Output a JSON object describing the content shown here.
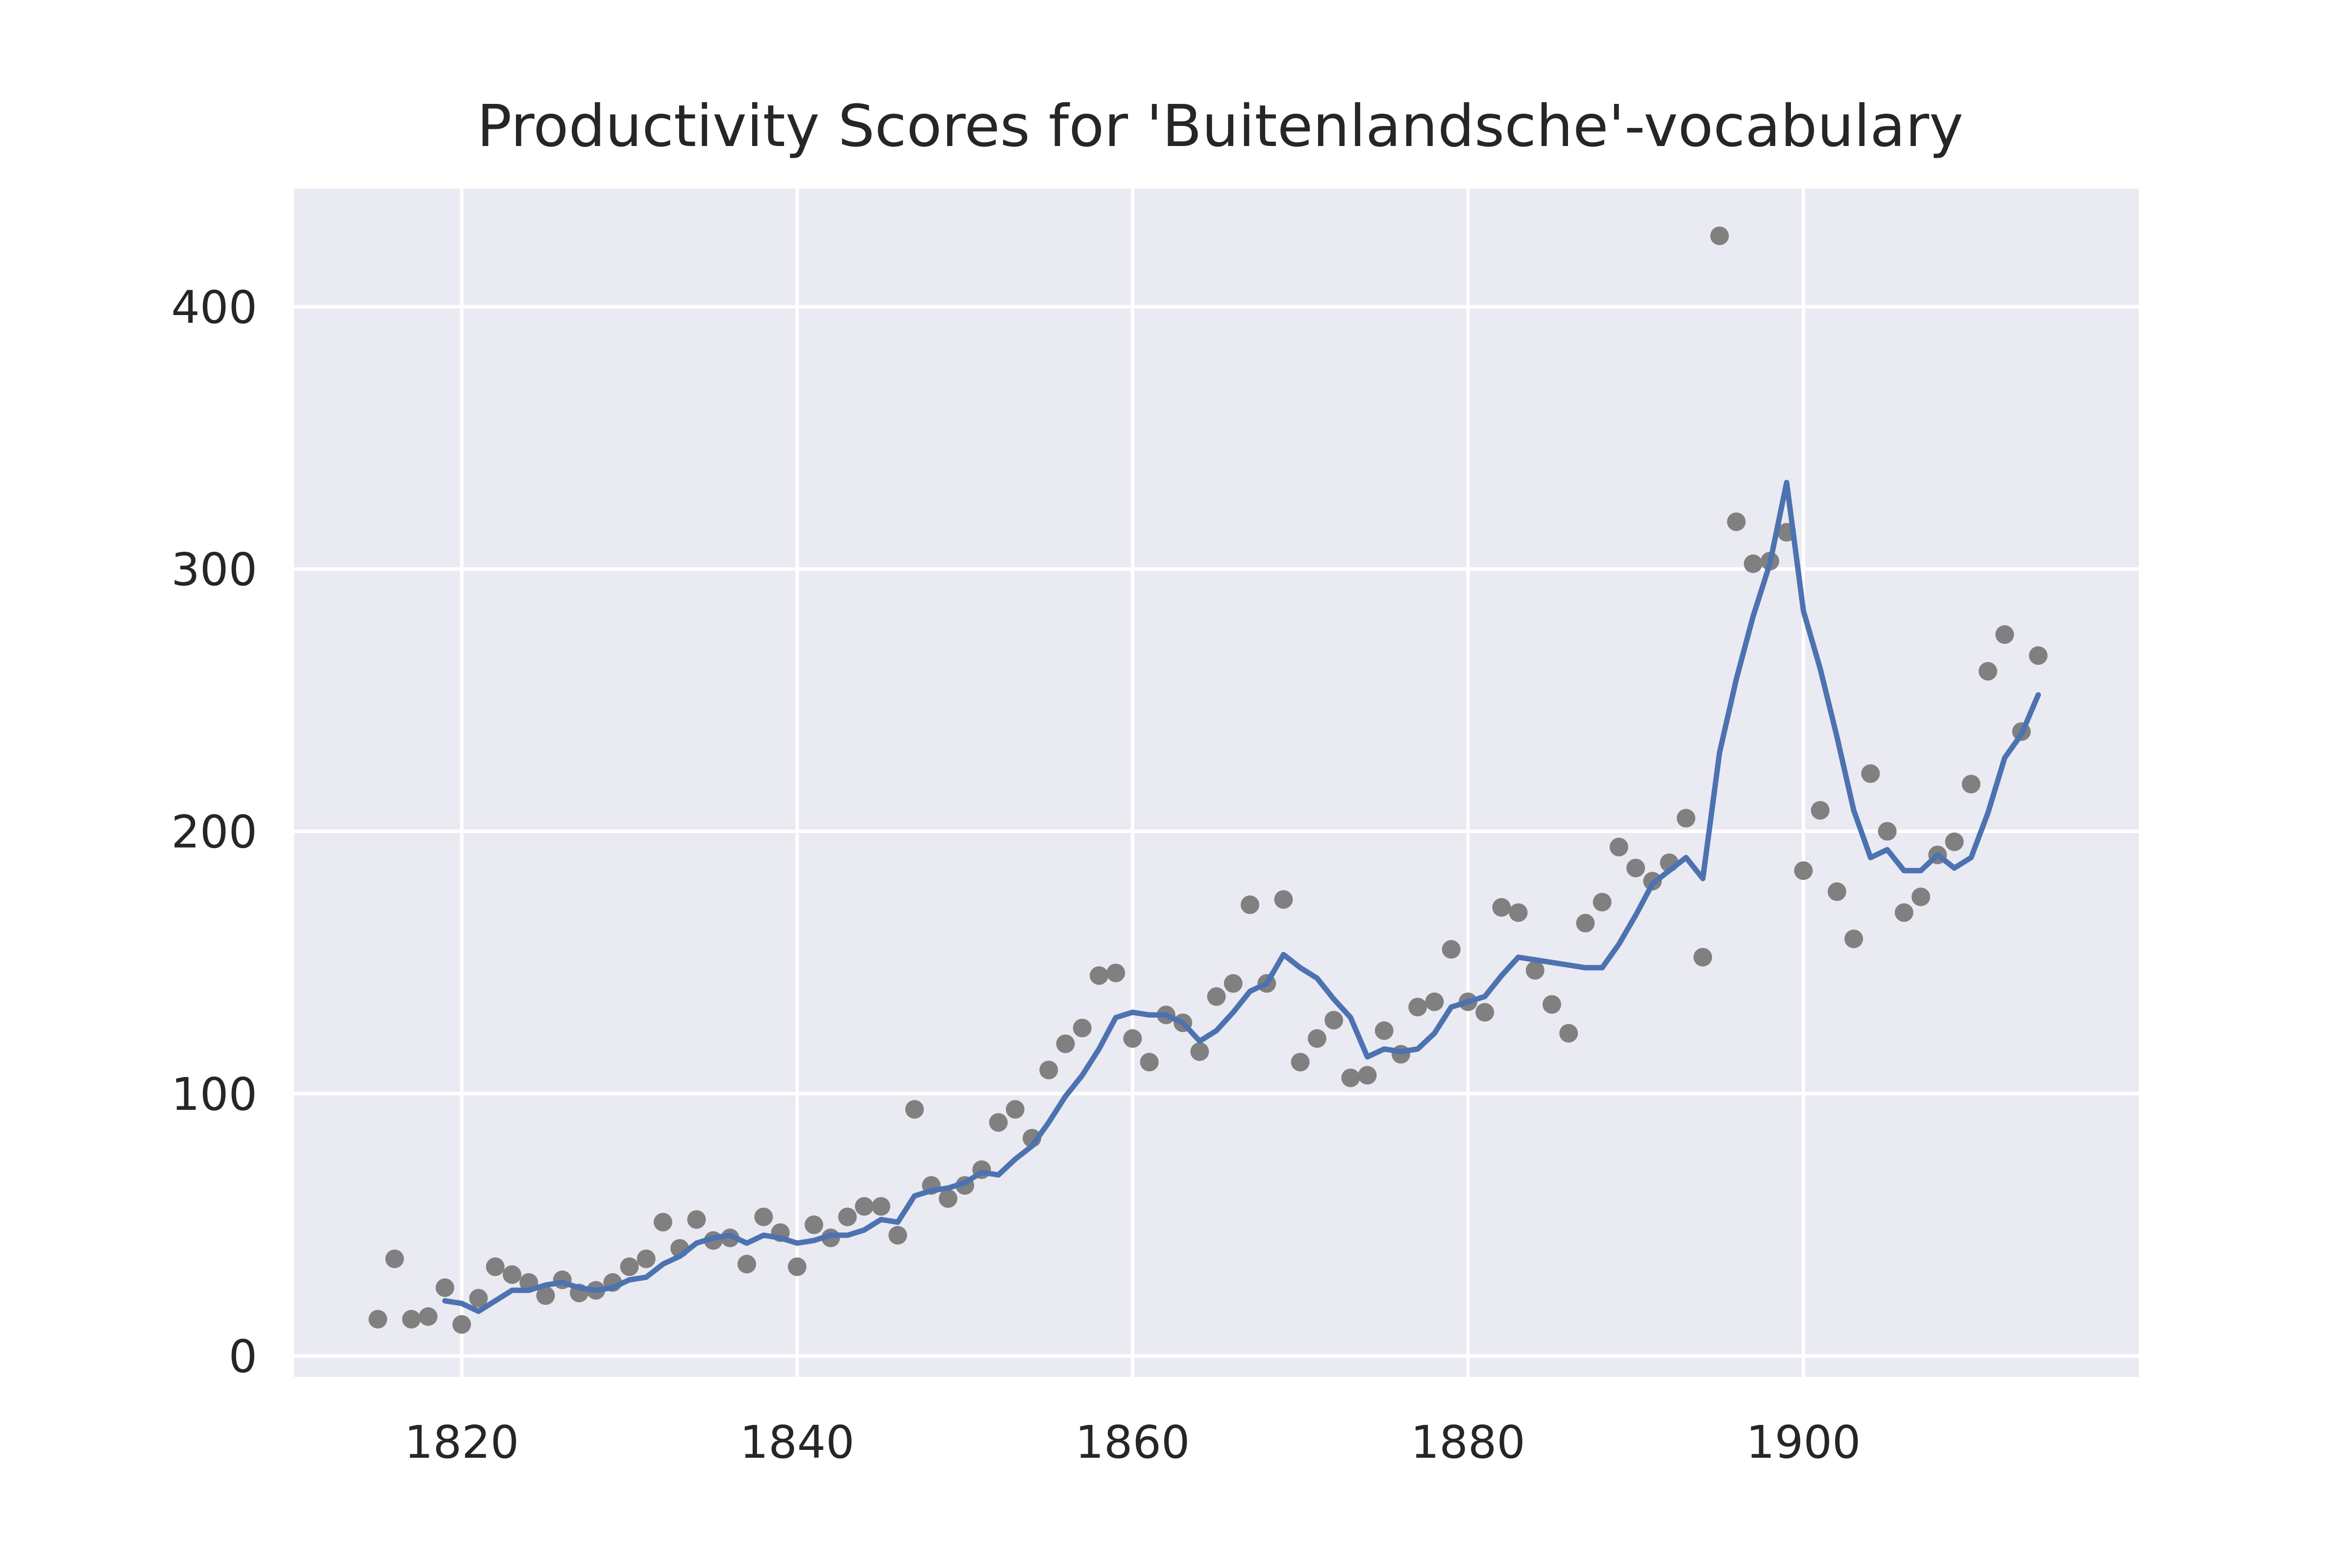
{
  "chart_data": {
    "type": "scatter",
    "title": "Productivity Scores for 'Buitenlandsche'-vocabulary",
    "xlabel": "",
    "ylabel": "",
    "xlim": [
      1810,
      1920
    ],
    "ylim": [
      -8,
      445
    ],
    "x_ticks": [
      1820,
      1840,
      1860,
      1880,
      1900
    ],
    "y_ticks": [
      0,
      100,
      200,
      300,
      400
    ],
    "grid": true,
    "legend": "none",
    "colors": {
      "plot_background": "#eaeaf2",
      "grid": "#ffffff",
      "points": "#808080",
      "line": "#4c72b0",
      "text": "#262626"
    },
    "series": [
      {
        "kind": "scatter",
        "x": [
          1815,
          1816,
          1817,
          1818,
          1819,
          1820,
          1821,
          1822,
          1823,
          1824,
          1825,
          1826,
          1827,
          1828,
          1829,
          1830,
          1831,
          1832,
          1833,
          1834,
          1835,
          1836,
          1837,
          1838,
          1839,
          1840,
          1841,
          1842,
          1843,
          1844,
          1845,
          1846,
          1847,
          1848,
          1849,
          1850,
          1851,
          1852,
          1853,
          1854,
          1855,
          1856,
          1857,
          1858,
          1859,
          1860,
          1861,
          1862,
          1863,
          1864,
          1865,
          1866,
          1867,
          1868,
          1869,
          1870,
          1871,
          1872,
          1873,
          1874,
          1875,
          1876,
          1877,
          1878,
          1879,
          1880,
          1881,
          1882,
          1883,
          1884,
          1885,
          1886,
          1887,
          1888,
          1889,
          1890,
          1891,
          1892,
          1893,
          1894,
          1895,
          1896,
          1897,
          1898,
          1899,
          1900,
          1901,
          1902,
          1903,
          1904,
          1905,
          1906,
          1907,
          1908,
          1909,
          1910,
          1911,
          1912,
          1913,
          1914
        ],
        "y": [
          14,
          37,
          14,
          15,
          26,
          12,
          22,
          34,
          31,
          28,
          23,
          29,
          24,
          25,
          28,
          34,
          37,
          51,
          41,
          52,
          44,
          45,
          35,
          53,
          47,
          34,
          50,
          45,
          53,
          57,
          57,
          46,
          94,
          65,
          60,
          65,
          71,
          89,
          94,
          83,
          109,
          119,
          125,
          145,
          146,
          121,
          112,
          130,
          127,
          116,
          137,
          142,
          172,
          142,
          174,
          112,
          121,
          128,
          106,
          107,
          124,
          115,
          133,
          135,
          155,
          135,
          131,
          171,
          169,
          147,
          134,
          123,
          165,
          173,
          194,
          186,
          181,
          188,
          205,
          152,
          427,
          318,
          302,
          303,
          314,
          185,
          208,
          177,
          159,
          222,
          200,
          169,
          175,
          191,
          196,
          218,
          261,
          275,
          238,
          267
        ]
      },
      {
        "kind": "line",
        "x": [
          1819,
          1820,
          1821,
          1822,
          1823,
          1824,
          1825,
          1826,
          1827,
          1828,
          1829,
          1830,
          1831,
          1832,
          1833,
          1834,
          1835,
          1836,
          1837,
          1838,
          1839,
          1840,
          1841,
          1842,
          1843,
          1844,
          1845,
          1846,
          1847,
          1848,
          1849,
          1850,
          1851,
          1852,
          1853,
          1854,
          1855,
          1856,
          1857,
          1858,
          1859,
          1860,
          1861,
          1862,
          1863,
          1864,
          1865,
          1866,
          1867,
          1868,
          1869,
          1870,
          1871,
          1872,
          1873,
          1874,
          1875,
          1876,
          1877,
          1878,
          1879,
          1880,
          1881,
          1882,
          1883,
          1884,
          1885,
          1886,
          1887,
          1888,
          1889,
          1890,
          1891,
          1892,
          1893,
          1894,
          1895,
          1896,
          1897,
          1898,
          1899,
          1900,
          1901,
          1902,
          1903,
          1904,
          1905,
          1906,
          1907,
          1908,
          1909,
          1910,
          1911,
          1912,
          1913,
          1914
        ],
        "y": [
          21,
          20,
          17,
          21,
          25,
          25,
          27,
          28,
          26,
          25,
          26,
          29,
          30,
          35,
          38,
          43,
          45,
          46,
          43,
          46,
          45,
          43,
          44,
          46,
          46,
          48,
          52,
          51,
          61,
          63,
          64,
          66,
          70,
          69,
          75,
          80,
          89,
          99,
          107,
          117,
          129,
          131,
          130,
          130,
          127,
          120,
          124,
          131,
          139,
          142,
          153,
          148,
          144,
          136,
          129,
          114,
          117,
          116,
          117,
          123,
          133,
          135,
          137,
          145,
          152,
          151,
          150,
          149,
          148,
          148,
          157,
          168,
          180,
          185,
          190,
          182,
          230,
          258,
          282,
          302,
          333,
          284,
          262,
          236,
          208,
          190,
          193,
          185,
          185,
          191,
          186,
          190,
          207,
          228,
          237,
          252
        ]
      }
    ]
  }
}
